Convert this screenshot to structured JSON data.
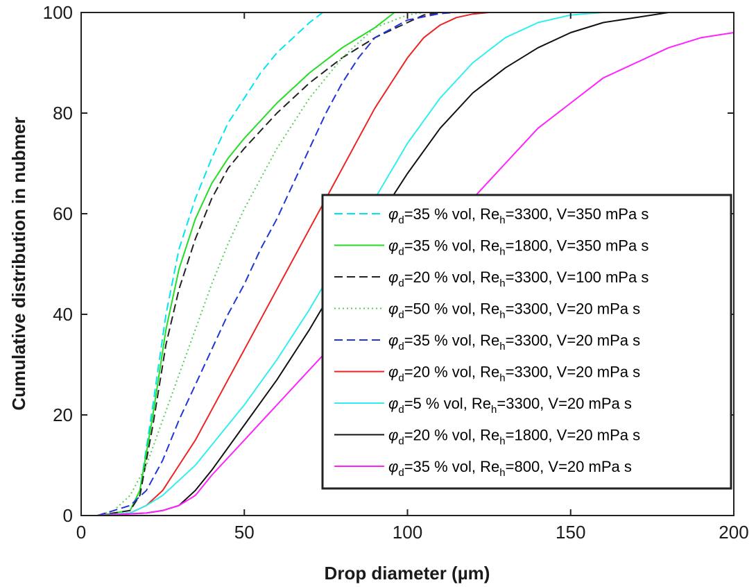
{
  "chart_data": {
    "type": "line",
    "xlabel": "Drop diameter (µm)",
    "ylabel": "Cumulative distribution in nubmer",
    "xlim": [
      0,
      200
    ],
    "ylim": [
      0,
      100
    ],
    "xticks": [
      0,
      50,
      100,
      150,
      200
    ],
    "yticks": [
      0,
      20,
      40,
      60,
      80,
      100
    ],
    "grid": false,
    "legend_position": "bottom-right",
    "series": [
      {
        "name": "φd=35 % vol, Reh=3300, V=350 mPa s",
        "legend": {
          "sym": "φ",
          "sub": "d",
          "a": "=35 % vol, Re",
          "b": "h",
          "c": "=3300, V=350 mPa s"
        },
        "color": "#00e5ee",
        "style": "dashed",
        "x": [
          5,
          15,
          18,
          22,
          26,
          30,
          35,
          40,
          45,
          50,
          55,
          60,
          65,
          70,
          74,
          80,
          100,
          200
        ],
        "y": [
          0,
          1,
          5,
          22,
          40,
          53,
          63,
          71,
          78,
          83,
          88,
          92,
          95,
          98,
          100,
          100,
          100,
          100
        ]
      },
      {
        "name": "φd=35 % vol, Reh=1800, V=350 mPa s",
        "legend": {
          "sym": "φ",
          "sub": "d",
          "a": "=35 % vol, Re",
          "b": "h",
          "c": "=1800, V=350 mPa s"
        },
        "color": "#22dd22",
        "style": "solid",
        "x": [
          5,
          15,
          18,
          22,
          26,
          30,
          35,
          40,
          45,
          50,
          60,
          70,
          80,
          90,
          96,
          100,
          200
        ],
        "y": [
          0,
          1,
          5,
          20,
          37,
          49,
          59,
          66,
          71,
          75,
          82,
          88,
          93,
          97,
          100,
          100,
          100
        ]
      },
      {
        "name": "φd=20 % vol, Reh=3300, V=100 mPa s",
        "legend": {
          "sym": "φ",
          "sub": "d",
          "a": "=20 % vol, Re",
          "b": "h",
          "c": "=3300, V=100 mPa s"
        },
        "color": "#222222",
        "style": "dashed",
        "x": [
          5,
          15,
          18,
          22,
          26,
          30,
          35,
          40,
          45,
          50,
          60,
          70,
          80,
          90,
          100,
          105,
          110,
          200
        ],
        "y": [
          0,
          1,
          4,
          18,
          34,
          45,
          55,
          63,
          69,
          73,
          80,
          86,
          91,
          95,
          98,
          99.5,
          100,
          100
        ]
      },
      {
        "name": "φd=50 % vol, Reh=3300, V=20 mPa s",
        "legend": {
          "sym": "φ",
          "sub": "d",
          "a": "=50 % vol, Re",
          "b": "h",
          "c": "=3300, V=20 mPa s"
        },
        "color": "#55cc55",
        "style": "dotted",
        "x": [
          5,
          10,
          15,
          20,
          25,
          30,
          35,
          40,
          45,
          50,
          60,
          70,
          80,
          90,
          100,
          105,
          200
        ],
        "y": [
          0,
          1,
          4,
          10,
          19,
          28,
          37,
          46,
          54,
          61,
          73,
          83,
          91,
          97,
          99.5,
          100,
          100
        ]
      },
      {
        "name": "φd=35 % vol, Reh=3300, V=20 mPa s",
        "legend": {
          "sym": "φ",
          "sub": "d",
          "a": "=35 % vol, Re",
          "b": "h",
          "c": "=3300, V=20 mPa s"
        },
        "color": "#2233dd",
        "style": "dashed",
        "x": [
          5,
          10,
          15,
          20,
          25,
          30,
          35,
          40,
          45,
          50,
          55,
          60,
          65,
          70,
          75,
          80,
          85,
          90,
          100,
          110,
          115,
          200
        ],
        "y": [
          0,
          1,
          2,
          5,
          11,
          19,
          26,
          33,
          40,
          46,
          53,
          59,
          66,
          73,
          80,
          86,
          91,
          95,
          98.5,
          99.8,
          100,
          100
        ]
      },
      {
        "name": "φd=20 % vol, Reh=3300, V=20 mPa s",
        "legend": {
          "sym": "φ",
          "sub": "d",
          "a": "=20 % vol, Re",
          "b": "h",
          "c": "=3300, V=20 mPa s"
        },
        "color": "#ee2222",
        "style": "solid",
        "x": [
          5,
          15,
          20,
          25,
          30,
          35,
          40,
          45,
          50,
          55,
          60,
          65,
          70,
          75,
          80,
          85,
          90,
          95,
          100,
          105,
          110,
          115,
          120,
          125,
          130,
          200
        ],
        "y": [
          0,
          0.5,
          2,
          5,
          10,
          15,
          21,
          27,
          33,
          39,
          45,
          51,
          57,
          63,
          69,
          75,
          81,
          86,
          91,
          95,
          97.5,
          99,
          99.7,
          100,
          100,
          100
        ]
      },
      {
        "name": "φd=5 % vol, Reh=3300, V=20 mPa s",
        "legend": {
          "sym": "φ",
          "sub": "d",
          "a": "=5 % vol, Re",
          "b": "h",
          "c": "=3300, V=20 mPa s"
        },
        "color": "#33eeee",
        "style": "solid",
        "x": [
          5,
          15,
          20,
          25,
          30,
          35,
          40,
          50,
          60,
          70,
          80,
          90,
          100,
          110,
          120,
          130,
          140,
          150,
          160,
          200
        ],
        "y": [
          0,
          0.5,
          2,
          4,
          7,
          10,
          14,
          22,
          31,
          41,
          52,
          63,
          74,
          83,
          90,
          95,
          98,
          99.5,
          100,
          100
        ]
      },
      {
        "name": "φd=20 % vol, Reh=1800, V=20 mPa s",
        "legend": {
          "sym": "φ",
          "sub": "d",
          "a": "=20 % vol, Re",
          "b": "h",
          "c": "=1800, V=20 mPa s"
        },
        "color": "#111111",
        "style": "solid",
        "x": [
          5,
          20,
          25,
          30,
          35,
          40,
          50,
          60,
          70,
          80,
          90,
          100,
          110,
          120,
          130,
          140,
          150,
          160,
          170,
          180,
          200
        ],
        "y": [
          0,
          0.5,
          1,
          2,
          5,
          9,
          18,
          27,
          37,
          48,
          58,
          68,
          77,
          84,
          89,
          93,
          96,
          98,
          99,
          100,
          100
        ]
      },
      {
        "name": "φd=35 % vol, Reh=800, V=20 mPa s",
        "legend": {
          "sym": "φ",
          "sub": "d",
          "a": "=35 % vol, Re",
          "b": "h",
          "c": "=800, V=20 mPa s"
        },
        "color": "#ff22ff",
        "style": "solid",
        "x": [
          5,
          20,
          25,
          30,
          35,
          40,
          50,
          60,
          70,
          80,
          90,
          100,
          110,
          120,
          130,
          140,
          150,
          160,
          170,
          180,
          190,
          200
        ],
        "y": [
          0,
          0.5,
          1,
          2,
          4,
          8,
          15,
          22,
          29,
          36,
          43,
          49,
          56,
          63,
          70,
          77,
          82,
          87,
          90,
          93,
          95,
          96
        ]
      }
    ]
  }
}
